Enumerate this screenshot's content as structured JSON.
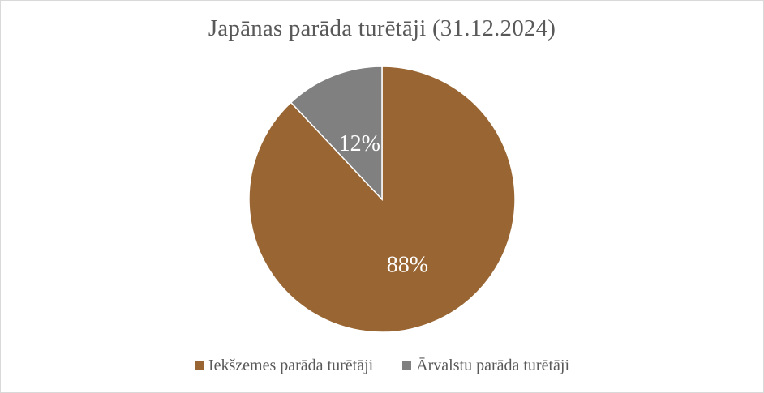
{
  "chart_data": {
    "type": "pie",
    "title": "Japānas parāda turētāji (31.12.2024)",
    "slices": [
      {
        "label": "Iekšzemes parāda turētāji",
        "value": 88,
        "display": "88%",
        "color": "#996633"
      },
      {
        "label": "Ārvalstu parāda turētāji",
        "value": 12,
        "display": "12%",
        "color": "#808080"
      }
    ],
    "legend_position": "bottom"
  }
}
